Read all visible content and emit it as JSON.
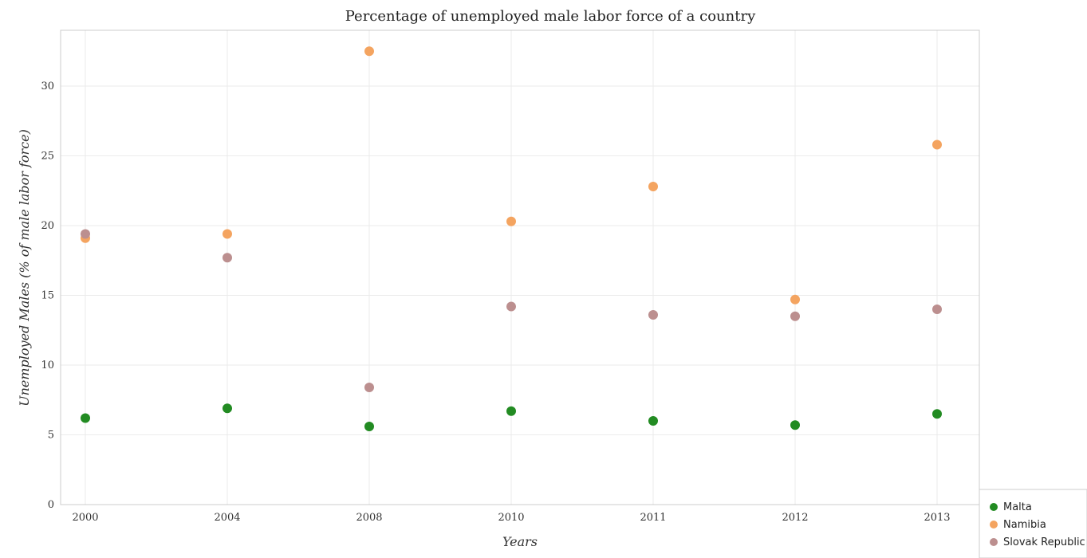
{
  "chart_data": {
    "type": "scatter",
    "title": "Percentage of unemployed male labor force of a country",
    "xlabel": "Years",
    "ylabel": "Unemployed Males (% of male labor force)",
    "categories": [
      "2000",
      "2004",
      "2008",
      "2010",
      "2011",
      "2012",
      "2013"
    ],
    "ylim": [
      0,
      34
    ],
    "yticks": [
      0,
      5,
      10,
      15,
      20,
      25,
      30
    ],
    "grid": true,
    "legend_position": "bottom-right",
    "series": [
      {
        "name": "Malta",
        "color": "#228b22",
        "values": [
          6.2,
          6.9,
          5.6,
          6.7,
          6.0,
          5.7,
          6.5
        ]
      },
      {
        "name": "Namibia",
        "color": "#f4a460",
        "values": [
          19.1,
          19.4,
          32.5,
          20.3,
          22.8,
          14.7,
          25.8
        ]
      },
      {
        "name": "Slovak Republic",
        "color": "#bc8f8f",
        "values": [
          19.4,
          17.7,
          8.4,
          14.2,
          13.6,
          13.5,
          14.0
        ]
      }
    ]
  }
}
